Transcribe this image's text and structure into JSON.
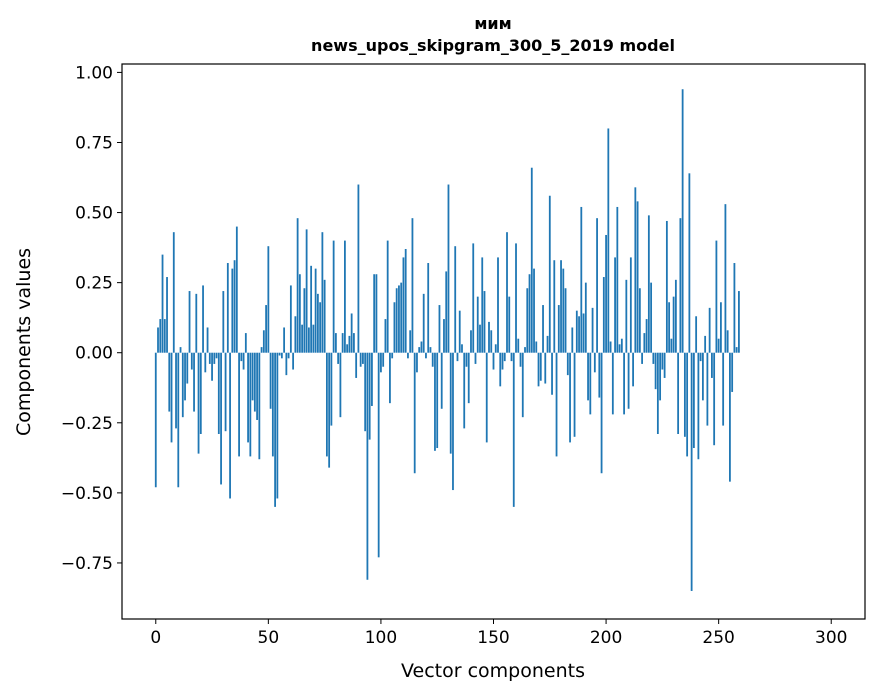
{
  "chart_data": {
    "type": "bar",
    "title_line1": "мим",
    "title_line2": "news_upos_skipgram_300_5_2019 model",
    "xlabel": "Vector components",
    "ylabel": "Components values",
    "xlim": [
      -15,
      315
    ],
    "ylim": [
      -0.95,
      1.03
    ],
    "xticks": [
      0,
      50,
      100,
      150,
      200,
      250,
      300
    ],
    "yticks": [
      1.0,
      0.75,
      0.5,
      0.25,
      0.0,
      -0.25,
      -0.5,
      -0.75
    ],
    "ytick_labels": [
      "1.00",
      "0.75",
      "0.50",
      "0.25",
      "0.00",
      "−0.25",
      "−0.50",
      "−0.75"
    ],
    "xtick_labels": [
      "0",
      "50",
      "100",
      "150",
      "200",
      "250",
      "300"
    ],
    "bar_color": "#1f77b4",
    "values": [
      -0.48,
      0.09,
      0.12,
      0.35,
      0.12,
      0.27,
      -0.21,
      -0.32,
      0.43,
      -0.27,
      -0.48,
      0.02,
      -0.23,
      -0.17,
      -0.11,
      0.22,
      -0.06,
      -0.21,
      0.21,
      -0.36,
      -0.29,
      0.24,
      -0.07,
      0.09,
      -0.04,
      -0.1,
      -0.04,
      -0.02,
      -0.29,
      -0.47,
      0.22,
      -0.28,
      0.32,
      -0.52,
      0.3,
      0.33,
      0.45,
      -0.37,
      -0.03,
      -0.06,
      0.07,
      -0.32,
      -0.37,
      -0.17,
      -0.21,
      -0.24,
      -0.38,
      0.02,
      0.08,
      0.17,
      0.38,
      -0.2,
      -0.37,
      -0.55,
      -0.52,
      -0.01,
      -0.02,
      0.09,
      -0.08,
      -0.02,
      0.24,
      -0.06,
      0.13,
      0.48,
      0.28,
      0.1,
      0.23,
      0.44,
      0.09,
      0.31,
      0.1,
      0.3,
      0.21,
      0.18,
      0.43,
      0.26,
      -0.37,
      -0.41,
      -0.26,
      0.4,
      0.07,
      -0.04,
      -0.23,
      0.07,
      0.4,
      0.03,
      0.06,
      0.14,
      0.07,
      -0.09,
      0.6,
      -0.05,
      -0.04,
      -0.28,
      -0.81,
      -0.31,
      -0.19,
      0.28,
      0.28,
      -0.73,
      -0.07,
      -0.05,
      0.12,
      0.4,
      -0.18,
      -0.02,
      0.18,
      0.23,
      0.24,
      0.25,
      0.34,
      0.37,
      -0.02,
      0.08,
      0.48,
      -0.43,
      -0.07,
      0.02,
      0.04,
      0.21,
      -0.02,
      0.32,
      0.02,
      -0.05,
      -0.35,
      -0.34,
      0.17,
      -0.2,
      0.12,
      0.29,
      0.6,
      -0.36,
      -0.49,
      0.38,
      -0.03,
      0.15,
      0.03,
      -0.27,
      -0.05,
      -0.18,
      0.08,
      0.39,
      -0.04,
      0.2,
      0.1,
      0.34,
      0.22,
      -0.32,
      0.11,
      0.08,
      -0.06,
      0.03,
      0.34,
      -0.12,
      -0.06,
      -0.03,
      0.43,
      0.2,
      -0.03,
      -0.55,
      0.39,
      0.05,
      -0.05,
      -0.23,
      0.02,
      0.23,
      0.28,
      0.66,
      0.3,
      0.04,
      -0.12,
      -0.1,
      0.17,
      -0.11,
      0.06,
      0.56,
      -0.15,
      0.33,
      -0.37,
      0.17,
      0.33,
      0.3,
      0.23,
      -0.08,
      -0.32,
      0.09,
      -0.3,
      0.15,
      0.13,
      0.52,
      0.14,
      0.25,
      -0.17,
      -0.22,
      0.16,
      -0.07,
      0.48,
      -0.16,
      -0.43,
      0.27,
      0.42,
      0.8,
      0.04,
      -0.22,
      0.34,
      0.52,
      0.03,
      0.05,
      -0.22,
      0.26,
      -0.2,
      0.34,
      -0.12,
      0.59,
      0.54,
      0.23,
      -0.04,
      0.07,
      0.12,
      0.49,
      0.25,
      -0.04,
      -0.13,
      -0.29,
      -0.17,
      -0.06,
      -0.09,
      0.47,
      0.18,
      0.05,
      0.2,
      0.26,
      -0.29,
      0.48,
      0.94,
      -0.3,
      -0.37,
      0.64,
      -0.85,
      -0.34,
      0.13,
      -0.38,
      -0.03,
      -0.17,
      0.06,
      -0.26,
      0.16,
      -0.09,
      -0.33,
      0.4,
      0.05,
      0.18,
      -0.26,
      0.53,
      0.08,
      -0.46,
      -0.14,
      0.32,
      0.02,
      0.22
    ]
  }
}
